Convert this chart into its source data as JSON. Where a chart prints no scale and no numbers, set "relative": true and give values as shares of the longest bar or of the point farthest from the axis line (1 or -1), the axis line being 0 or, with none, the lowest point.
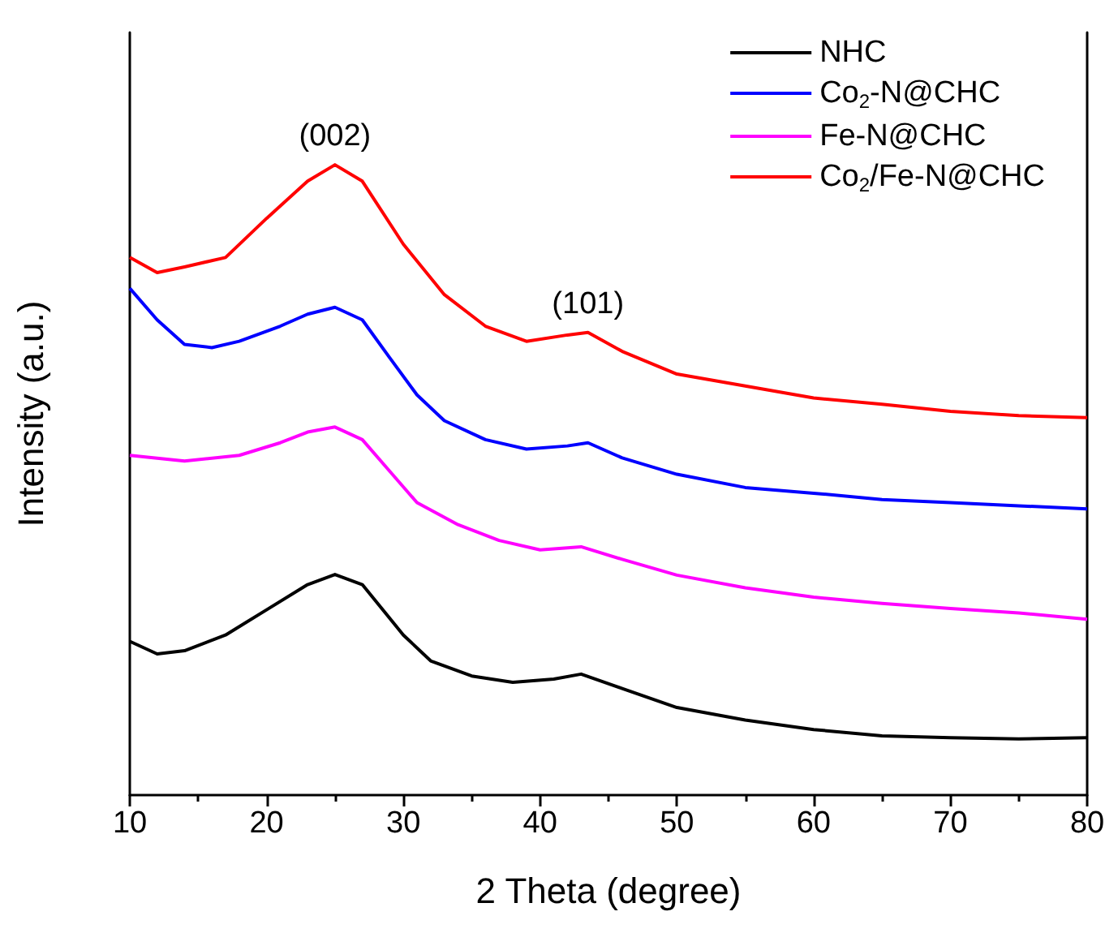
{
  "chart_data": {
    "type": "line",
    "relative": true,
    "xlabel": "2 Theta (degree)",
    "ylabel": "Intensity (a.u.)",
    "xlim": [
      10,
      80
    ],
    "xticks": [
      10,
      20,
      30,
      40,
      50,
      60,
      70,
      80
    ],
    "grid": false,
    "legend": "top right",
    "marker": "none",
    "line_style": "solid",
    "annotations": [
      {
        "text": "(002)",
        "x": 25,
        "y": 1.0
      },
      {
        "text": "(101)",
        "x": 43.5,
        "y": 0.734
      }
    ],
    "series": [
      {
        "name": "NHC",
        "color": "#000000",
        "x": [
          10,
          12,
          14,
          17,
          20,
          23,
          25,
          27,
          30,
          32,
          35,
          38,
          41,
          43,
          46,
          50,
          55,
          60,
          65,
          70,
          75,
          80
        ],
        "values": [
          0.244,
          0.224,
          0.229,
          0.254,
          0.294,
          0.334,
          0.35,
          0.334,
          0.254,
          0.213,
          0.189,
          0.179,
          0.184,
          0.192,
          0.169,
          0.139,
          0.119,
          0.104,
          0.094,
          0.091,
          0.089,
          0.091
        ]
      },
      {
        "name": "Co$_{2}$-N@CHC",
        "color": "#0000ff",
        "x": [
          10,
          12,
          14,
          16,
          18,
          21,
          23,
          25,
          27,
          29,
          31,
          33,
          36,
          39,
          42,
          43.5,
          46,
          50,
          55,
          60,
          65,
          70,
          75,
          80
        ],
        "values": [
          0.804,
          0.754,
          0.715,
          0.71,
          0.72,
          0.744,
          0.763,
          0.774,
          0.754,
          0.694,
          0.635,
          0.594,
          0.564,
          0.549,
          0.554,
          0.559,
          0.535,
          0.509,
          0.488,
          0.479,
          0.469,
          0.464,
          0.459,
          0.454
        ]
      },
      {
        "name": "Fe-N@CHC",
        "color": "#ff00ff",
        "x": [
          10,
          14,
          18,
          21,
          23,
          25,
          27,
          29,
          31,
          34,
          37,
          40,
          43,
          46,
          50,
          55,
          60,
          65,
          70,
          75,
          80
        ],
        "values": [
          0.539,
          0.53,
          0.539,
          0.559,
          0.576,
          0.584,
          0.564,
          0.514,
          0.464,
          0.429,
          0.404,
          0.389,
          0.394,
          0.374,
          0.349,
          0.329,
          0.314,
          0.304,
          0.296,
          0.289,
          0.279
        ]
      },
      {
        "name": "Co$_{2}$/Fe-N@CHC",
        "color": "#ff0000",
        "x": [
          10,
          12,
          14,
          17,
          20,
          23,
          25,
          27,
          30,
          33,
          36,
          39,
          42,
          43.5,
          46,
          50,
          55,
          60,
          65,
          70,
          75,
          80
        ],
        "values": [
          0.853,
          0.829,
          0.838,
          0.853,
          0.915,
          0.974,
          1.0,
          0.974,
          0.874,
          0.794,
          0.744,
          0.72,
          0.73,
          0.734,
          0.704,
          0.668,
          0.649,
          0.63,
          0.62,
          0.609,
          0.602,
          0.599
        ]
      }
    ]
  }
}
